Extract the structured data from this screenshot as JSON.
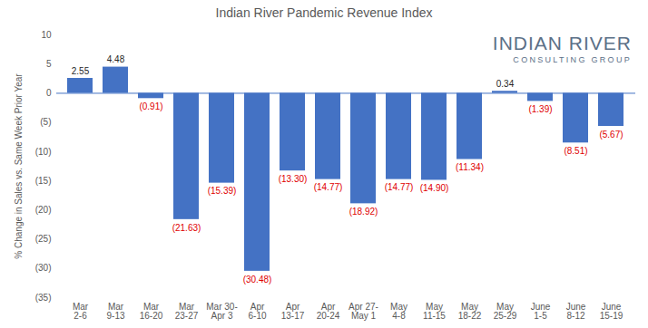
{
  "chart_data": {
    "type": "bar",
    "title": "Indian River Pandemic Revenue Index",
    "y_label": "% Change in Sales vs. Same Week Prior Year",
    "categories": [
      "Mar 2-6",
      "Mar 9-13",
      "Mar 16-20",
      "Mar 23-27",
      "Mar 30- Apr 3",
      "Apr 6-10",
      "Apr 13-17",
      "Apr 20-24",
      "Apr 27- May 1",
      "May 4-8",
      "May 11-15",
      "May 18-22",
      "May 25-29",
      "June 1-5",
      "June 8-12",
      "June 15-19"
    ],
    "values": [
      2.55,
      4.48,
      -0.91,
      -21.63,
      -15.39,
      -30.48,
      -13.3,
      -14.77,
      -18.92,
      -14.77,
      -14.9,
      -11.34,
      0.34,
      -1.39,
      -8.51,
      -5.67
    ],
    "value_labels": [
      "2.55",
      "4.48",
      "(0.91)",
      "(21.63)",
      "(15.39)",
      "(30.48)",
      "(13.30)",
      "(14.77)",
      "(18.92)",
      "(14.77)",
      "(14.90)",
      "(11.34)",
      "0.34",
      "(1.39)",
      "(8.51)",
      "(5.67)"
    ],
    "color": "#4472c4",
    "ylim": [
      -35,
      10
    ],
    "yticks": [
      10,
      5,
      0,
      {
        "value": -5,
        "label": "(5)"
      },
      {
        "value": -10,
        "label": "(10)"
      },
      {
        "value": -15,
        "label": "(15)"
      },
      {
        "value": -20,
        "label": "(20)"
      },
      {
        "value": -25,
        "label": "(25)"
      },
      {
        "value": -30,
        "label": "(30)"
      },
      {
        "value": -35,
        "label": "(35)"
      }
    ],
    "grid": false,
    "data_labels": true,
    "annotations": [
      "INDIAN RIVER",
      "CONSULTING GROUP"
    ]
  }
}
